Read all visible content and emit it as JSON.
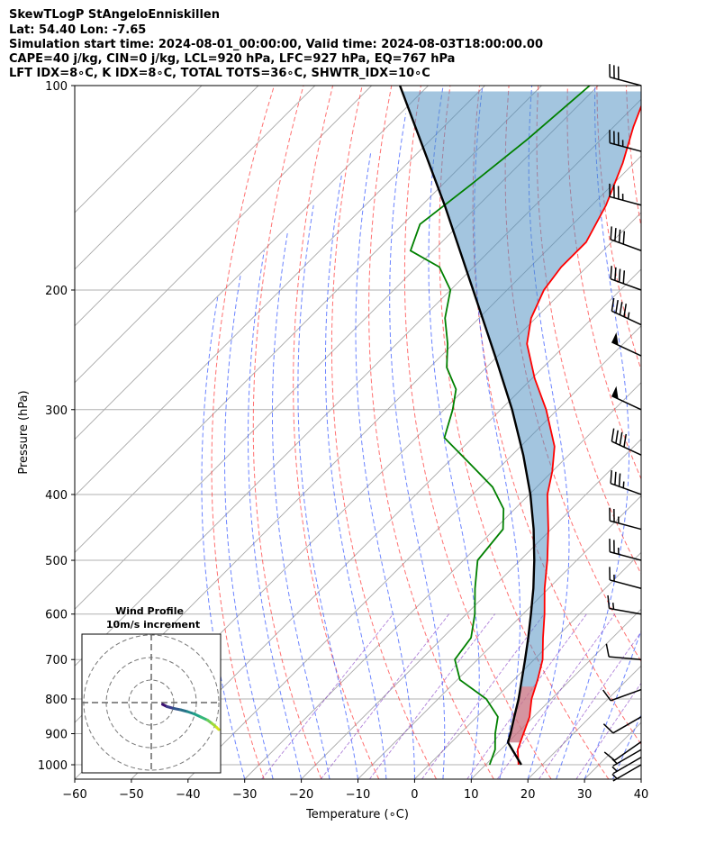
{
  "header": {
    "line1": "SkewTLogP StAngeloEnniskillen",
    "line2": "Lat: 54.40   Lon: -7.65",
    "line3": "Simulation start time: 2024-08-01_00:00:00, Valid time: 2024-08-03T18:00:00.00",
    "line4": "CAPE=40 j/kg, CIN=0 j/kg, LCL=920 hPa, LFC=927 hPa, EQ=767 hPa",
    "line5": "LFT IDX=8∘C, K IDX=8∘C, TOTAL TOTS=36∘C, SHWTR_IDX=10∘C"
  },
  "chart_data": {
    "type": "line",
    "subtype": "skew-t log-p",
    "xlabel": "Temperature (∘C)",
    "ylabel": "Pressure (hPa)",
    "xlim": [
      -60,
      40
    ],
    "ylim": [
      1050,
      100
    ],
    "y_scale": "log",
    "skew": "isotherms slanted 45 degrees",
    "x_ticks": [
      -60,
      -50,
      -40,
      -30,
      -20,
      -10,
      0,
      10,
      20,
      30,
      40
    ],
    "y_ticks": [
      100,
      200,
      300,
      400,
      500,
      600,
      700,
      800,
      900,
      1000
    ],
    "grid": true,
    "series": [
      {
        "role": "temperature",
        "color": "#ff0000",
        "points": [
          {
            "p": 1000,
            "t": 15.8
          },
          {
            "p": 950,
            "t": 13.0
          },
          {
            "p": 900,
            "t": 11.2
          },
          {
            "p": 850,
            "t": 9.3
          },
          {
            "p": 800,
            "t": 6.5
          },
          {
            "p": 750,
            "t": 4.2
          },
          {
            "p": 700,
            "t": 1.5
          },
          {
            "p": 650,
            "t": -2.3
          },
          {
            "p": 600,
            "t": -6.2
          },
          {
            "p": 550,
            "t": -10.7
          },
          {
            "p": 500,
            "t": -15.2
          },
          {
            "p": 450,
            "t": -20.5
          },
          {
            "p": 400,
            "t": -26.8
          },
          {
            "p": 370,
            "t": -30.0
          },
          {
            "p": 340,
            "t": -34.0
          },
          {
            "p": 300,
            "t": -42.0
          },
          {
            "p": 270,
            "t": -49.5
          },
          {
            "p": 240,
            "t": -57.0
          },
          {
            "p": 220,
            "t": -60.8
          },
          {
            "p": 200,
            "t": -63.5
          },
          {
            "p": 185,
            "t": -64.5
          },
          {
            "p": 170,
            "t": -64.5
          },
          {
            "p": 150,
            "t": -67.5
          },
          {
            "p": 130,
            "t": -72.0
          },
          {
            "p": 115,
            "t": -76.5
          },
          {
            "p": 100,
            "t": -81.0
          }
        ]
      },
      {
        "role": "dewpoint",
        "color": "#008000",
        "points": [
          {
            "p": 1000,
            "t": 10.7
          },
          {
            "p": 950,
            "t": 9.0
          },
          {
            "p": 900,
            "t": 6.2
          },
          {
            "p": 850,
            "t": 3.7
          },
          {
            "p": 800,
            "t": -1.5
          },
          {
            "p": 750,
            "t": -9.5
          },
          {
            "p": 700,
            "t": -14.0
          },
          {
            "p": 650,
            "t": -15.0
          },
          {
            "p": 600,
            "t": -18.5
          },
          {
            "p": 550,
            "t": -23.0
          },
          {
            "p": 500,
            "t": -27.5
          },
          {
            "p": 450,
            "t": -28.5
          },
          {
            "p": 420,
            "t": -32.0
          },
          {
            "p": 390,
            "t": -37.8
          },
          {
            "p": 360,
            "t": -46.0
          },
          {
            "p": 330,
            "t": -55.0
          },
          {
            "p": 300,
            "t": -58.5
          },
          {
            "p": 280,
            "t": -61.5
          },
          {
            "p": 260,
            "t": -67.0
          },
          {
            "p": 240,
            "t": -71.0
          },
          {
            "p": 220,
            "t": -76.0
          },
          {
            "p": 200,
            "t": -80.0
          },
          {
            "p": 185,
            "t": -86.0
          },
          {
            "p": 175,
            "t": -94.0
          },
          {
            "p": 160,
            "t": -97.0
          },
          {
            "p": 140,
            "t": -95.0
          },
          {
            "p": 120,
            "t": -93.0
          },
          {
            "p": 100,
            "t": -91.5
          }
        ]
      },
      {
        "role": "parcel",
        "color": "#000000",
        "points": [
          {
            "p": 1000,
            "t": 16.3
          },
          {
            "p": 927,
            "t": 10.0
          },
          {
            "p": 900,
            "t": 8.9
          },
          {
            "p": 850,
            "t": 6.6
          },
          {
            "p": 800,
            "t": 4.2
          },
          {
            "p": 750,
            "t": 1.4
          },
          {
            "p": 700,
            "t": -1.6
          },
          {
            "p": 650,
            "t": -4.9
          },
          {
            "p": 600,
            "t": -8.6
          },
          {
            "p": 550,
            "t": -12.7
          },
          {
            "p": 500,
            "t": -17.5
          },
          {
            "p": 450,
            "t": -23.1
          },
          {
            "p": 400,
            "t": -29.8
          },
          {
            "p": 350,
            "t": -38.0
          },
          {
            "p": 300,
            "t": -48.0
          },
          {
            "p": 250,
            "t": -60.5
          },
          {
            "p": 200,
            "t": -76.0
          },
          {
            "p": 150,
            "t": -96.0
          },
          {
            "p": 100,
            "t": -125.0
          }
        ]
      }
    ],
    "wind_barbs": [
      {
        "p": 100,
        "direction": 285,
        "speed": 30
      },
      {
        "p": 125,
        "direction": 285,
        "speed": 35
      },
      {
        "p": 150,
        "direction": 285,
        "speed": 35
      },
      {
        "p": 175,
        "direction": 290,
        "speed": 40
      },
      {
        "p": 200,
        "direction": 290,
        "speed": 40
      },
      {
        "p": 225,
        "direction": 295,
        "speed": 45
      },
      {
        "p": 250,
        "direction": 295,
        "speed": 50
      },
      {
        "p": 300,
        "direction": 295,
        "speed": 50
      },
      {
        "p": 350,
        "direction": 295,
        "speed": 40
      },
      {
        "p": 400,
        "direction": 290,
        "speed": 35
      },
      {
        "p": 450,
        "direction": 285,
        "speed": 25
      },
      {
        "p": 500,
        "direction": 285,
        "speed": 25
      },
      {
        "p": 550,
        "direction": 285,
        "speed": 15
      },
      {
        "p": 600,
        "direction": 280,
        "speed": 15
      },
      {
        "p": 700,
        "direction": 275,
        "speed": 10
      },
      {
        "p": 775,
        "direction": 250,
        "speed": 10
      },
      {
        "p": 850,
        "direction": 240,
        "speed": 10
      },
      {
        "p": 925,
        "direction": 235,
        "speed": 10
      },
      {
        "p": 950,
        "direction": 240,
        "speed": 5
      },
      {
        "p": 975,
        "direction": 240,
        "speed": 5
      },
      {
        "p": 1000,
        "direction": 240,
        "speed": 5
      }
    ],
    "hodograph": {
      "title": "Wind Profile",
      "subtitle": "10m/s increment",
      "ring_interval": 10,
      "points": [
        {
          "u": 5.0,
          "v": 0.8
        },
        {
          "u": 7.0,
          "v": 1.8
        },
        {
          "u": 10.0,
          "v": 2.6
        },
        {
          "u": 13.0,
          "v": 3.2
        },
        {
          "u": 16.0,
          "v": 4.0
        },
        {
          "u": 19.0,
          "v": 5.0
        },
        {
          "u": 22.0,
          "v": 6.4
        },
        {
          "u": 25.0,
          "v": 7.8
        },
        {
          "u": 27.0,
          "v": 9.3
        },
        {
          "u": 29.0,
          "v": 11.0
        },
        {
          "u": 30.0,
          "v": 12.0
        }
      ]
    }
  }
}
